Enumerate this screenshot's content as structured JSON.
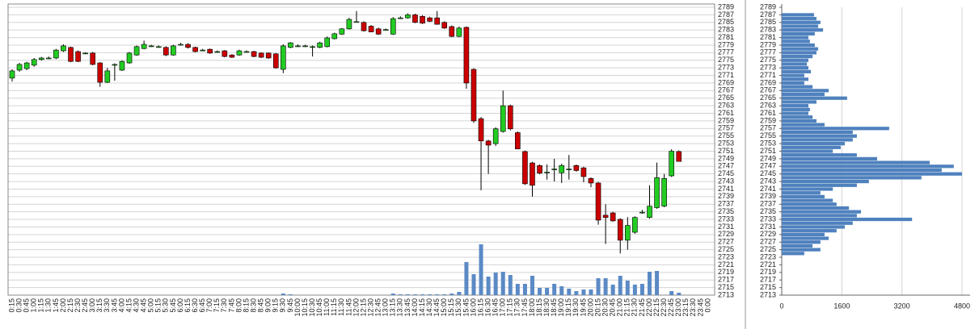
{
  "chart_data": [
    {
      "type": "candlestick",
      "categories": [
        "0:15",
        "0:30",
        "0:45",
        "1:00",
        "1:15",
        "1:30",
        "1:45",
        "2:00",
        "2:15",
        "2:30",
        "2:45",
        "3:00",
        "3:15",
        "3:30",
        "3:45",
        "4:00",
        "4:15",
        "4:30",
        "4:45",
        "5:00",
        "5:15",
        "5:30",
        "5:45",
        "6:00",
        "6:15",
        "6:30",
        "6:45",
        "7:00",
        "7:15",
        "7:30",
        "7:45",
        "8:00",
        "8:15",
        "8:30",
        "8:45",
        "9:00",
        "9:15",
        "9:30",
        "9:45",
        "10:00",
        "10:15",
        "10:30",
        "10:45",
        "11:00",
        "11:15",
        "11:30",
        "11:45",
        "12:00",
        "12:15",
        "12:30",
        "12:45",
        "13:00",
        "13:15",
        "13:30",
        "13:45",
        "14:00",
        "14:15",
        "14:30",
        "14:45",
        "15:00",
        "15:15",
        "15:30",
        "15:45",
        "16:00",
        "16:15",
        "16:30",
        "16:45",
        "17:00",
        "17:15",
        "17:30",
        "17:45",
        "18:00",
        "18:15",
        "18:30",
        "18:45",
        "19:00",
        "19:15",
        "19:30",
        "19:45",
        "20:00",
        "20:15",
        "20:30",
        "20:45",
        "21:00",
        "21:15",
        "21:30",
        "21:45",
        "22:00",
        "22:15",
        "22:30",
        "22:45",
        "23:00",
        "23:15",
        "23:30",
        "23:45",
        "0:00"
      ],
      "open": [
        2770.3,
        2772.4,
        2772.8,
        2773.7,
        2775.2,
        2775.6,
        2775.6,
        2777.5,
        2778.4,
        2777.3,
        2776.9,
        2776.9,
        2774.3,
        2769.2,
        2773.9,
        2772.4,
        2774.3,
        2776.4,
        2778.1,
        2778.8,
        2778.6,
        2778.4,
        2776.4,
        2779.2,
        2779.2,
        2778.4,
        2777.7,
        2777.9,
        2777.3,
        2777.5,
        2776.4,
        2776.4,
        2777.3,
        2777.3,
        2776.9,
        2776.9,
        2776.7,
        2772.6,
        2778.4,
        2778.8,
        2778.8,
        2778.6,
        2778.4,
        2778.6,
        2780.7,
        2781.9,
        2783.3,
        2785.2,
        2785.0,
        2784.0,
        2783.3,
        2783.1,
        2781.9,
        2786.2,
        2786.2,
        2787.0,
        2786.6,
        2786.2,
        2786.2,
        2785.0,
        2783.9,
        2781.3,
        2783.7,
        2772.6,
        2759.6,
        2753.7,
        2753.0,
        2756.2,
        2763.0,
        2755.9,
        2750.9,
        2747.9,
        2747.2,
        2745.5,
        2746.3,
        2745.3,
        2746.3,
        2747.2,
        2746.6,
        2743.8,
        2742.6,
        2734.1,
        2734.7,
        2733.0,
        2727.5,
        2729.6,
        2734.9,
        2733.5,
        2736.1,
        2736.5,
        2744.5,
        2750.9,
        null,
        null,
        null,
        null
      ],
      "high": [
        2772.6,
        2774.3,
        2774.6,
        2775.6,
        2775.9,
        2776.0,
        2778.0,
        2779.2,
        2778.6,
        2777.6,
        2777.1,
        2777.2,
        2774.5,
        2773.0,
        2774.2,
        2775.0,
        2777.2,
        2778.9,
        2780.2,
        2779.1,
        2778.9,
        2778.7,
        2779.1,
        2779.6,
        2779.5,
        2778.6,
        2778.0,
        2778.1,
        2777.6,
        2777.7,
        2776.6,
        2777.8,
        2777.6,
        2777.5,
        2777.1,
        2777.1,
        2776.9,
        2779.2,
        2779.8,
        2779.2,
        2779.1,
        2778.9,
        2779.9,
        2781.3,
        2782.3,
        2783.5,
        2786.2,
        2788.0,
        2785.3,
        2784.3,
        2783.6,
        2783.4,
        2786.4,
        2786.6,
        2787.4,
        2787.3,
        2786.9,
        2786.5,
        2788.0,
        2785.3,
        2784.2,
        2783.9,
        2783.9,
        2772.9,
        2760.0,
        2754.0,
        2757.3,
        2767.0,
        2763.3,
        2756.2,
        2751.2,
        2748.2,
        2747.5,
        2747.5,
        2749.0,
        2747.7,
        2750.0,
        2747.5,
        2746.9,
        2744.1,
        2742.9,
        2737.0,
        2735.0,
        2733.3,
        2733.6,
        2733.8,
        2735.5,
        2742.0,
        2748.0,
        2745.0,
        2751.5,
        2751.2,
        null,
        null,
        null,
        null
      ],
      "low": [
        2769.4,
        2772.0,
        2772.4,
        2773.3,
        2774.9,
        2775.3,
        2775.3,
        2777.2,
        2774.5,
        2774.5,
        2776.6,
        2773.7,
        2768.0,
        2769.0,
        2769.6,
        2772.2,
        2774.1,
        2776.2,
        2777.9,
        2778.5,
        2778.3,
        2776.1,
        2776.2,
        2778.9,
        2778.1,
        2777.1,
        2777.4,
        2776.7,
        2777.0,
        2775.8,
        2775.6,
        2776.2,
        2777.0,
        2775.8,
        2775.6,
        2775.4,
        2772.8,
        2771.6,
        2778.2,
        2778.5,
        2778.5,
        2776.0,
        2778.2,
        2778.4,
        2780.5,
        2781.7,
        2783.1,
        2785.0,
        2782.6,
        2782.4,
        2781.7,
        2782.8,
        2781.7,
        2785.9,
        2786.0,
        2784.8,
        2784.6,
        2785.1,
        2784.4,
        2783.3,
        2781.1,
        2781.1,
        2767.5,
        2758.5,
        2740.7,
        2745.0,
        2752.4,
        2755.9,
        2756.5,
        2751.5,
        2742.1,
        2739.0,
        2744.9,
        2743.5,
        2743.0,
        2742.6,
        2743.5,
        2745.6,
        2742.8,
        2741.5,
        2731.6,
        2726.5,
        2732.4,
        2724.0,
        2725.0,
        2729.2,
        2734.5,
        2733.2,
        2735.8,
        2736.2,
        2744.2,
        2748.3,
        null,
        null,
        null,
        null
      ],
      "close": [
        2772.2,
        2773.9,
        2774.3,
        2775.2,
        2775.6,
        2775.6,
        2777.7,
        2778.8,
        2774.7,
        2774.7,
        2776.9,
        2773.9,
        2769.2,
        2772.2,
        2773.9,
        2774.7,
        2776.9,
        2778.6,
        2779.2,
        2778.8,
        2778.6,
        2776.4,
        2778.8,
        2779.2,
        2778.4,
        2777.3,
        2777.7,
        2776.9,
        2777.3,
        2776.0,
        2775.8,
        2777.5,
        2777.3,
        2776.0,
        2775.8,
        2775.6,
        2773.0,
        2778.8,
        2779.6,
        2778.8,
        2778.8,
        2778.6,
        2779.6,
        2780.9,
        2782.0,
        2783.3,
        2785.8,
        2785.2,
        2782.8,
        2782.5,
        2781.9,
        2783.1,
        2786.0,
        2786.2,
        2787.0,
        2785.0,
        2784.8,
        2785.3,
        2784.5,
        2783.5,
        2781.3,
        2783.5,
        2769.0,
        2759.0,
        2753.7,
        2752.6,
        2756.9,
        2763.0,
        2756.9,
        2751.6,
        2742.4,
        2742.0,
        2745.2,
        2745.5,
        2746.3,
        2747.2,
        2746.3,
        2745.9,
        2744.3,
        2742.6,
        2732.8,
        2733.5,
        2732.6,
        2727.5,
        2731.4,
        2733.5,
        2734.9,
        2736.5,
        2744.0,
        2743.8,
        2751.0,
        2748.3,
        null,
        null,
        null,
        null
      ],
      "volume": [
        0,
        0,
        0,
        0,
        0,
        0,
        0,
        0,
        0,
        0,
        0,
        0,
        0,
        0,
        0,
        0,
        0,
        0,
        0,
        0,
        0,
        0,
        0,
        0,
        0,
        0,
        0,
        0,
        0,
        0,
        0,
        0,
        0,
        0,
        0,
        0,
        0,
        200,
        100,
        0,
        0,
        0,
        0,
        0,
        0,
        0,
        0,
        0,
        0,
        0,
        0,
        0,
        200,
        100,
        100,
        100,
        100,
        100,
        100,
        100,
        200,
        400,
        4100,
        2600,
        6300,
        2300,
        2800,
        2900,
        2500,
        1400,
        1400,
        2400,
        900,
        900,
        1400,
        1100,
        800,
        500,
        700,
        700,
        2100,
        2100,
        1300,
        2400,
        1800,
        1300,
        1400,
        2900,
        3000,
        0,
        500,
        300,
        null,
        null,
        null,
        null
      ],
      "up_color": "#22cc22",
      "down_color": "#cc0000",
      "volume_color": "#5b8ac5",
      "ylim": [
        2713,
        2789
      ],
      "yticks": [
        2713,
        2715,
        2717,
        2719,
        2721,
        2723,
        2725,
        2727,
        2729,
        2731,
        2733,
        2735,
        2737,
        2739,
        2741,
        2743,
        2745,
        2747,
        2749,
        2751,
        2753,
        2755,
        2757,
        2759,
        2761,
        2763,
        2765,
        2767,
        2769,
        2771,
        2773,
        2775,
        2777,
        2779,
        2781,
        2783,
        2785,
        2787,
        2789
      ],
      "grid": true
    },
    {
      "type": "profile",
      "levels": [
        2787,
        2786,
        2785,
        2784,
        2783,
        2782,
        2781,
        2780,
        2779,
        2778,
        2777,
        2776,
        2775,
        2774,
        2773,
        2772,
        2771,
        2770,
        2769,
        2768,
        2767,
        2766,
        2765,
        2764,
        2763,
        2762,
        2761,
        2760,
        2759,
        2758,
        2757,
        2756,
        2755,
        2754,
        2753,
        2752,
        2751,
        2750,
        2749,
        2748,
        2747,
        2746,
        2745,
        2744,
        2743,
        2742,
        2741,
        2740,
        2739,
        2738,
        2737,
        2736,
        2735,
        2734,
        2733,
        2732,
        2731,
        2730,
        2729,
        2728,
        2727,
        2726,
        2725,
        2724
      ],
      "values": [
        860,
        925,
        1030,
        970,
        1100,
        880,
        710,
        750,
        880,
        970,
        925,
        820,
        710,
        670,
        710,
        775,
        600,
        710,
        600,
        820,
        1250,
        1140,
        1740,
        925,
        710,
        750,
        710,
        820,
        925,
        1140,
        2860,
        1890,
        2000,
        1890,
        1680,
        1570,
        1360,
        2000,
        2540,
        3940,
        4580,
        4260,
        4800,
        3720,
        2320,
        2000,
        1360,
        1030,
        1140,
        1360,
        1460,
        1790,
        2110,
        2000,
        3470,
        1890,
        1680,
        1460,
        1140,
        1250,
        1030,
        820,
        1030,
        600
      ],
      "color": "#4f81bd",
      "xlim": [
        0,
        4800
      ],
      "xticks": [
        0,
        1600,
        3200,
        4800
      ],
      "ylim": [
        2713,
        2789
      ],
      "yticks": [
        2713,
        2715,
        2717,
        2719,
        2721,
        2723,
        2725,
        2727,
        2729,
        2731,
        2733,
        2735,
        2737,
        2739,
        2741,
        2743,
        2745,
        2747,
        2749,
        2751,
        2753,
        2755,
        2757,
        2759,
        2761,
        2763,
        2765,
        2767,
        2769,
        2771,
        2773,
        2775,
        2777,
        2779,
        2781,
        2783,
        2785,
        2787,
        2789
      ],
      "grid": true
    }
  ]
}
